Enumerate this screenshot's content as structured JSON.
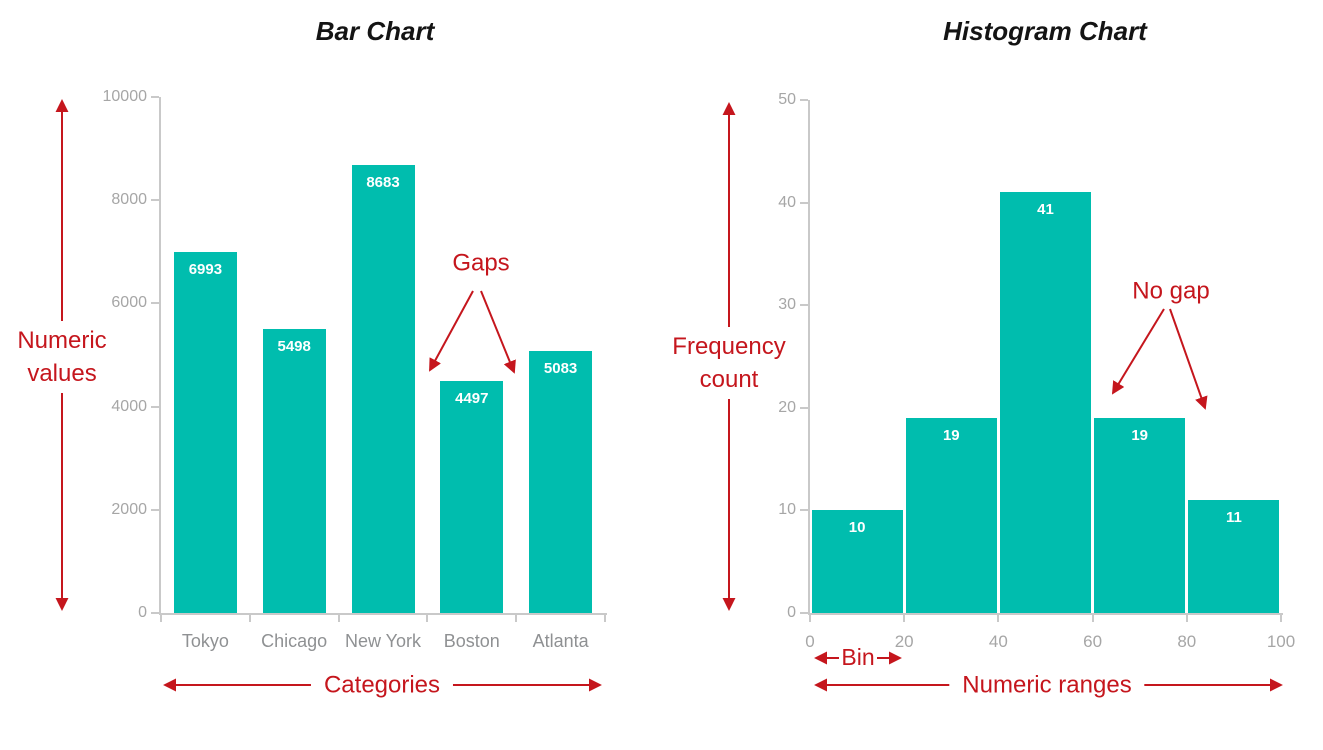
{
  "colors": {
    "background": "#ffffff",
    "bar_fill": "#00bdae",
    "annotation_red": "#c5161d",
    "axis_line": "#c9c9c9",
    "axis_tick_label": "#a6a6a6",
    "category_label": "#8f9193",
    "title": "#141414",
    "bar_value_label": "#ffffff"
  },
  "chart_data": [
    {
      "type": "bar",
      "title": "Bar Chart",
      "categories": [
        "Tokyo",
        "Chicago",
        "New York",
        "Boston",
        "Atlanta"
      ],
      "values": [
        6993,
        5498,
        8683,
        4497,
        5083
      ],
      "xlabel": "Categories",
      "ylabel": "Numeric values",
      "ylim": [
        0,
        10000
      ],
      "ytick_step": 2000,
      "ytick_labels": [
        "0",
        "2000",
        "4000",
        "6000",
        "8000",
        "10000"
      ],
      "grid": "off",
      "legend": "none",
      "bars_have_gaps": true,
      "annotations": {
        "y_axis_label": "Numeric values",
        "x_axis_label": "Categories",
        "gaps_label": "Gaps"
      }
    },
    {
      "type": "histogram",
      "title": "Histogram Chart",
      "bin_edges": [
        0,
        20,
        40,
        60,
        80,
        100
      ],
      "xtick_labels": [
        "0",
        "20",
        "40",
        "60",
        "80",
        "100"
      ],
      "values": [
        10,
        19,
        41,
        19,
        11
      ],
      "xlabel": "Numeric ranges",
      "ylabel": "Frequency count",
      "ylim": [
        0,
        50
      ],
      "ytick_step": 10,
      "ytick_labels": [
        "0",
        "10",
        "20",
        "30",
        "40",
        "50"
      ],
      "grid": "off",
      "legend": "none",
      "bars_have_gaps": false,
      "annotations": {
        "y_axis_label": "Frequency count",
        "x_axis_label": "Numeric ranges",
        "bin_label": "Bin",
        "no_gap_label": "No gap"
      }
    }
  ]
}
